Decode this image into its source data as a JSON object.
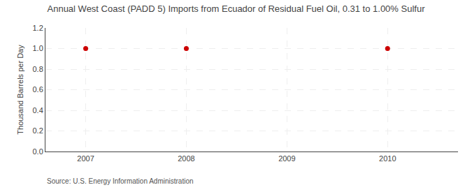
{
  "chart_data": {
    "type": "scatter",
    "title": "Annual West Coast (PADD 5) Imports from Ecuador of Residual Fuel Oil, 0.31 to 1.00% Sulfur",
    "y_label": "Thousand Barrels per Day",
    "annotations": [
      "Source: U.S. Energy Information Administration"
    ],
    "x": [
      2007,
      2008,
      2010
    ],
    "values": [
      1.0,
      1.0,
      1.0
    ],
    "color": "#CC0000",
    "marker": "circle",
    "xlim": [
      2006.6,
      2010.7
    ],
    "xticks": [
      2007,
      2008,
      2009,
      2010
    ],
    "ylim": [
      0.0,
      1.2
    ],
    "yticks": [
      {
        "value": 0.0,
        "label": "0.0"
      },
      0.2,
      0.4,
      0.6,
      0.8,
      {
        "value": 1.0,
        "label": "1.0"
      },
      1.2
    ],
    "grid": true
  }
}
